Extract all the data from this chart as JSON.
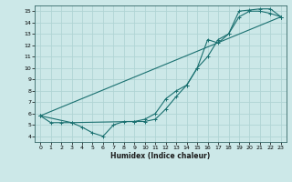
{
  "xlabel": "Humidex (Indice chaleur)",
  "xlim": [
    -0.5,
    23.5
  ],
  "ylim": [
    3.5,
    15.5
  ],
  "xticks": [
    0,
    1,
    2,
    3,
    4,
    5,
    6,
    7,
    8,
    9,
    10,
    11,
    12,
    13,
    14,
    15,
    16,
    17,
    18,
    19,
    20,
    21,
    22,
    23
  ],
  "yticks": [
    4,
    5,
    6,
    7,
    8,
    9,
    10,
    11,
    12,
    13,
    14,
    15
  ],
  "bg_color": "#cce8e8",
  "grid_color": "#b0d4d4",
  "line_color": "#1a7070",
  "curve1_x": [
    0,
    1,
    2,
    3,
    4,
    5,
    6,
    7,
    8,
    9,
    10,
    11,
    12,
    13,
    14,
    15,
    16,
    17,
    18,
    19,
    20,
    21,
    22,
    23
  ],
  "curve1_y": [
    5.8,
    5.2,
    5.2,
    5.2,
    4.8,
    4.3,
    4.0,
    5.0,
    5.3,
    5.3,
    5.3,
    5.5,
    6.4,
    7.5,
    8.5,
    10.0,
    12.5,
    12.2,
    13.0,
    15.0,
    15.1,
    15.2,
    15.2,
    14.5
  ],
  "curve2_x": [
    0,
    23
  ],
  "curve2_y": [
    5.8,
    14.5
  ],
  "curve3_x": [
    0,
    3,
    9,
    10,
    11,
    12,
    13,
    14,
    15,
    16,
    17,
    18,
    19,
    20,
    21,
    22,
    23
  ],
  "curve3_y": [
    5.8,
    5.2,
    5.3,
    5.5,
    6.0,
    7.3,
    8.0,
    8.5,
    10.0,
    11.0,
    12.5,
    13.0,
    14.5,
    15.0,
    15.0,
    14.8,
    14.5
  ],
  "marker": "+"
}
